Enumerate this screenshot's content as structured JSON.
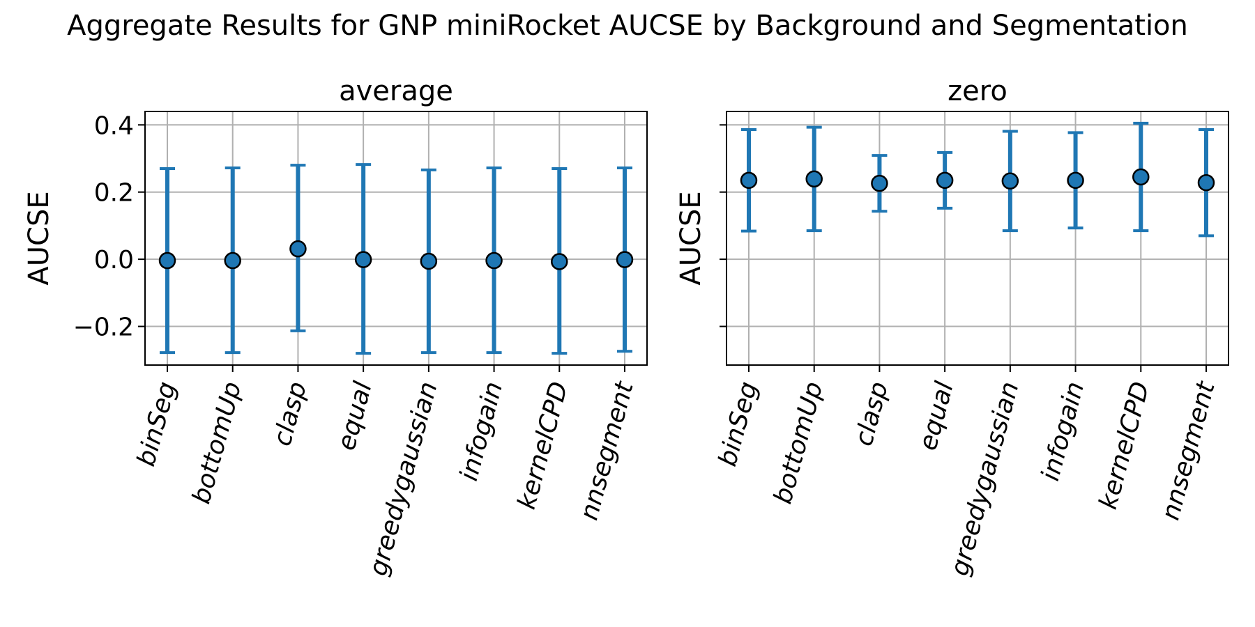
{
  "chart_data": {
    "type": "scatter",
    "title": "Aggregate Results for GNP miniRocket AUCSE by Background and Segmentation",
    "categories": [
      "binSeg",
      "bottomUp",
      "clasp",
      "equal",
      "greedygaussian",
      "infogain",
      "kernelCPD",
      "nnsegment"
    ],
    "ylabel": "AUCSE",
    "ylim": [
      -0.315,
      0.44
    ],
    "yticks": [
      -0.2,
      0.0,
      0.2,
      0.4
    ],
    "ytick_labels": [
      "−0.2",
      "0.0",
      "0.2",
      "0.4"
    ],
    "color": "#1f77b4",
    "grid": true,
    "panels": [
      {
        "title": "average",
        "series": [
          {
            "name": "average",
            "values": [
              -0.004,
              -0.004,
              0.031,
              -0.001,
              -0.006,
              -0.004,
              -0.007,
              -0.001
            ],
            "err_low": [
              -0.278,
              -0.278,
              -0.213,
              -0.28,
              -0.278,
              -0.278,
              -0.28,
              -0.274
            ],
            "err_high": [
              0.27,
              0.272,
              0.28,
              0.282,
              0.266,
              0.272,
              0.27,
              0.272
            ]
          }
        ]
      },
      {
        "title": "zero",
        "series": [
          {
            "name": "zero",
            "values": [
              0.235,
              0.239,
              0.226,
              0.235,
              0.233,
              0.235,
              0.245,
              0.228
            ],
            "err_low": [
              0.084,
              0.085,
              0.143,
              0.152,
              0.085,
              0.093,
              0.085,
              0.07
            ],
            "err_high": [
              0.386,
              0.393,
              0.309,
              0.318,
              0.381,
              0.377,
              0.405,
              0.386
            ]
          }
        ]
      }
    ]
  }
}
